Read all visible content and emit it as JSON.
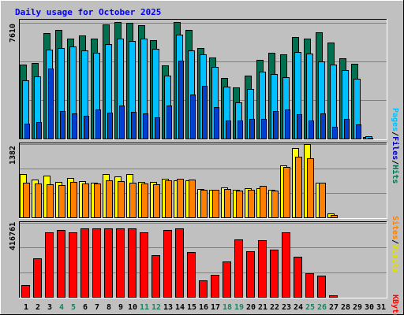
{
  "title": "Daily usage for October 2025",
  "colors": {
    "title": "#0000ff",
    "hits": "#007050",
    "files": "#00c0ff",
    "pages": "#0040d0",
    "visits": "#ffff00",
    "sites": "#ff8000",
    "kbytes": "#ff0000",
    "weekend_day": "#208060",
    "weekday": "#000000"
  },
  "chart_data": [
    {
      "type": "bar",
      "name": "Pages / Files / Hits",
      "ymax_label": "7610",
      "ymax": 7610,
      "legend": [
        "Pages",
        "/",
        "Files",
        "/",
        "Hits"
      ],
      "categories": [
        "1",
        "2",
        "3",
        "4",
        "5",
        "6",
        "7",
        "8",
        "9",
        "10",
        "11",
        "12",
        "13",
        "14",
        "15",
        "16",
        "17",
        "18",
        "19",
        "20",
        "21",
        "22",
        "23",
        "24",
        "25",
        "26",
        "27",
        "28",
        "29",
        "30",
        "31"
      ],
      "series": [
        {
          "name": "Hits",
          "values": [
            4850,
            4950,
            6950,
            7150,
            6600,
            6800,
            6600,
            7500,
            7660,
            7620,
            7450,
            6450,
            4800,
            7660,
            7150,
            5950,
            5350,
            4000,
            3350,
            4150,
            5200,
            5650,
            5550,
            6700,
            6600,
            7000,
            6300,
            5300,
            4900,
            80,
            0
          ]
        },
        {
          "name": "Files",
          "values": [
            3850,
            4100,
            5850,
            5950,
            6050,
            5800,
            5650,
            6200,
            6550,
            6400,
            6550,
            5900,
            4150,
            6850,
            5800,
            5550,
            4700,
            3400,
            2400,
            3250,
            4400,
            4250,
            4050,
            5700,
            5600,
            5050,
            4850,
            4500,
            3950,
            160,
            0
          ]
        },
        {
          "name": "Pages",
          "values": [
            1000,
            1100,
            4600,
            1800,
            1650,
            1500,
            1900,
            1700,
            2150,
            1750,
            1650,
            1400,
            2200,
            5100,
            2900,
            3450,
            2050,
            1200,
            1200,
            1300,
            1300,
            1800,
            1900,
            1600,
            1200,
            1650,
            800,
            1300,
            950,
            40,
            0
          ]
        }
      ]
    },
    {
      "type": "bar",
      "name": "Sites / Visits",
      "ymax_label": "1382",
      "ymax": 1382,
      "legend": [
        "Sites",
        "/",
        "Visits"
      ],
      "categories": [
        "1",
        "2",
        "3",
        "4",
        "5",
        "6",
        "7",
        "8",
        "9",
        "10",
        "11",
        "12",
        "13",
        "14",
        "15",
        "16",
        "17",
        "18",
        "19",
        "20",
        "21",
        "22",
        "23",
        "24",
        "25",
        "26",
        "27",
        "28",
        "29",
        "30",
        "31"
      ],
      "series": [
        {
          "name": "Visits",
          "values": [
            812,
            707,
            785,
            675,
            743,
            689,
            655,
            813,
            766,
            818,
            670,
            670,
            723,
            700,
            700,
            538,
            522,
            567,
            518,
            548,
            548,
            522,
            977,
            1302,
            1382,
            658,
            80,
            0,
            0,
            0,
            0
          ]
        },
        {
          "name": "Sites",
          "values": [
            651,
            644,
            622,
            611,
            664,
            644,
            640,
            694,
            679,
            651,
            644,
            619,
            694,
            733,
            715,
            524,
            514,
            533,
            505,
            526,
            591,
            500,
            950,
            1142,
            1117,
            651,
            40,
            0,
            0,
            0,
            0
          ]
        }
      ]
    },
    {
      "type": "bar",
      "name": "KBytes",
      "ymax_label": "416761",
      "ymax": 416761,
      "legend": [
        "KBytes"
      ],
      "categories": [
        "1",
        "2",
        "3",
        "4",
        "5",
        "6",
        "7",
        "8",
        "9",
        "10",
        "11",
        "12",
        "13",
        "14",
        "15",
        "16",
        "17",
        "18",
        "19",
        "20",
        "21",
        "22",
        "23",
        "24",
        "25",
        "26",
        "27",
        "28",
        "29",
        "30",
        "31"
      ],
      "series": [
        {
          "name": "KBytes",
          "values": [
            67000,
            218000,
            362000,
            375000,
            362000,
            384000,
            384000,
            384000,
            384000,
            384000,
            362000,
            235000,
            375000,
            384000,
            251000,
            95000,
            125000,
            200000,
            325000,
            255000,
            320000,
            265000,
            362000,
            224000,
            132000,
            121000,
            8000,
            0,
            0,
            0,
            0
          ]
        }
      ]
    }
  ],
  "weekend_days": [
    "4",
    "5",
    "11",
    "12",
    "18",
    "19",
    "25",
    "26"
  ]
}
